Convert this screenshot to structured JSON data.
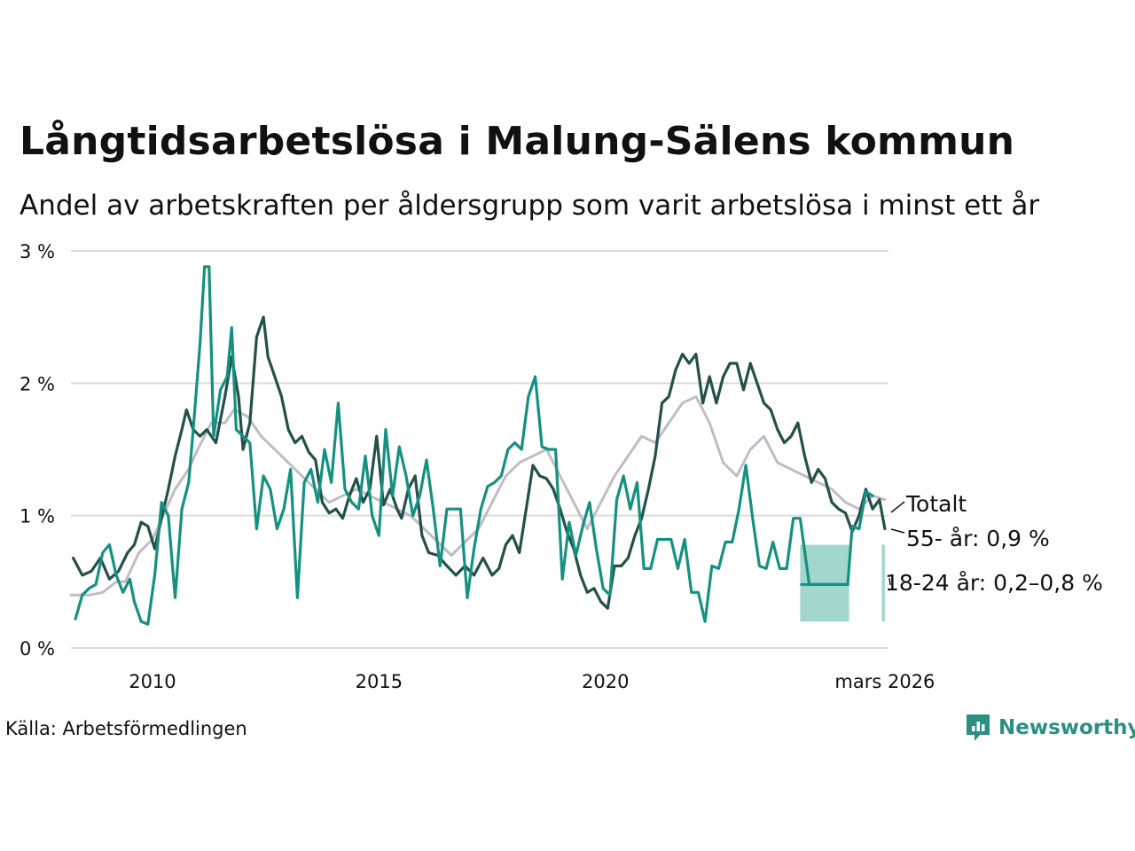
{
  "title": "Långtidsarbetslösa i Malung-Sälens kommun",
  "subtitle": "Andel av arbetskraften per åldersgrupp som varit arbetslösa i minst ett år",
  "source": "Källa: Arbetsförmedlingen",
  "brand": "Newsworthy",
  "colors": {
    "total": "#c0bcc8",
    "age55": "#24504a",
    "age18_24": "#14917f",
    "band": "#a3d6cd",
    "grid": "#dddddd",
    "brand": "#2b8f83"
  },
  "chart_data": {
    "type": "line",
    "x_unit": "decimal year",
    "xlim": [
      2008.2,
      2026.25
    ],
    "ylim": [
      0,
      3
    ],
    "yticks": [
      0,
      1,
      2,
      3
    ],
    "ytick_labels": [
      "0 %",
      "1 %",
      "2 %",
      "3 %"
    ],
    "xticks": [
      2010,
      2015,
      2020,
      2026.17
    ],
    "xtick_labels": [
      "2010",
      "2015",
      "2020",
      "mars 2026"
    ],
    "legend_placement": "end-of-line labels, right",
    "series": [
      {
        "name": "Totalt",
        "label": "Totalt",
        "color": "#c0bcc8",
        "points": [
          [
            2008.2,
            0.4
          ],
          [
            2008.6,
            0.4
          ],
          [
            2008.9,
            0.42
          ],
          [
            2009.2,
            0.5
          ],
          [
            2009.4,
            0.5
          ],
          [
            2009.7,
            0.72
          ],
          [
            2010.0,
            0.82
          ],
          [
            2010.3,
            1.05
          ],
          [
            2010.5,
            1.2
          ],
          [
            2010.8,
            1.35
          ],
          [
            2011.0,
            1.5
          ],
          [
            2011.3,
            1.7
          ],
          [
            2011.6,
            1.7
          ],
          [
            2011.8,
            1.8
          ],
          [
            2012.1,
            1.75
          ],
          [
            2012.4,
            1.6
          ],
          [
            2012.7,
            1.5
          ],
          [
            2013.0,
            1.4
          ],
          [
            2013.3,
            1.3
          ],
          [
            2013.6,
            1.2
          ],
          [
            2013.9,
            1.1
          ],
          [
            2014.2,
            1.15
          ],
          [
            2014.5,
            1.2
          ],
          [
            2014.8,
            1.15
          ],
          [
            2015.1,
            1.1
          ],
          [
            2015.4,
            1.05
          ],
          [
            2015.7,
            1.0
          ],
          [
            2016.0,
            0.9
          ],
          [
            2016.3,
            0.8
          ],
          [
            2016.6,
            0.7
          ],
          [
            2016.9,
            0.8
          ],
          [
            2017.2,
            0.9
          ],
          [
            2017.5,
            1.1
          ],
          [
            2017.8,
            1.3
          ],
          [
            2018.1,
            1.4
          ],
          [
            2018.4,
            1.45
          ],
          [
            2018.7,
            1.5
          ],
          [
            2019.0,
            1.3
          ],
          [
            2019.3,
            1.1
          ],
          [
            2019.6,
            0.9
          ],
          [
            2019.9,
            1.1
          ],
          [
            2020.2,
            1.3
          ],
          [
            2020.5,
            1.45
          ],
          [
            2020.8,
            1.6
          ],
          [
            2021.1,
            1.55
          ],
          [
            2021.4,
            1.7
          ],
          [
            2021.7,
            1.85
          ],
          [
            2022.0,
            1.9
          ],
          [
            2022.3,
            1.7
          ],
          [
            2022.6,
            1.4
          ],
          [
            2022.9,
            1.3
          ],
          [
            2023.2,
            1.5
          ],
          [
            2023.5,
            1.6
          ],
          [
            2023.8,
            1.4
          ],
          [
            2024.1,
            1.35
          ],
          [
            2024.4,
            1.3
          ],
          [
            2024.7,
            1.25
          ],
          [
            2025.0,
            1.2
          ],
          [
            2025.3,
            1.1
          ],
          [
            2025.6,
            1.05
          ],
          [
            2025.9,
            1.15
          ],
          [
            2026.17,
            1.12
          ]
        ]
      },
      {
        "name": "55- år",
        "label": "55- år: 0,9 %",
        "color": "#24504a",
        "points": [
          [
            2008.25,
            0.68
          ],
          [
            2008.45,
            0.55
          ],
          [
            2008.65,
            0.58
          ],
          [
            2008.85,
            0.68
          ],
          [
            2009.05,
            0.52
          ],
          [
            2009.25,
            0.58
          ],
          [
            2009.45,
            0.72
          ],
          [
            2009.6,
            0.78
          ],
          [
            2009.75,
            0.95
          ],
          [
            2009.9,
            0.92
          ],
          [
            2010.05,
            0.75
          ],
          [
            2010.2,
            0.98
          ],
          [
            2010.35,
            1.2
          ],
          [
            2010.5,
            1.45
          ],
          [
            2010.65,
            1.65
          ],
          [
            2010.75,
            1.8
          ],
          [
            2010.9,
            1.65
          ],
          [
            2011.05,
            1.6
          ],
          [
            2011.2,
            1.65
          ],
          [
            2011.4,
            1.55
          ],
          [
            2011.6,
            1.9
          ],
          [
            2011.75,
            2.2
          ],
          [
            2011.9,
            1.9
          ],
          [
            2012.0,
            1.5
          ],
          [
            2012.15,
            1.7
          ],
          [
            2012.3,
            2.35
          ],
          [
            2012.45,
            2.5
          ],
          [
            2012.55,
            2.2
          ],
          [
            2012.7,
            2.05
          ],
          [
            2012.85,
            1.9
          ],
          [
            2013.0,
            1.65
          ],
          [
            2013.15,
            1.55
          ],
          [
            2013.3,
            1.6
          ],
          [
            2013.45,
            1.48
          ],
          [
            2013.6,
            1.42
          ],
          [
            2013.75,
            1.1
          ],
          [
            2013.9,
            1.02
          ],
          [
            2014.05,
            1.05
          ],
          [
            2014.2,
            0.98
          ],
          [
            2014.35,
            1.15
          ],
          [
            2014.5,
            1.28
          ],
          [
            2014.65,
            1.1
          ],
          [
            2014.8,
            1.2
          ],
          [
            2014.95,
            1.6
          ],
          [
            2015.1,
            1.08
          ],
          [
            2015.25,
            1.2
          ],
          [
            2015.4,
            1.05
          ],
          [
            2015.5,
            0.98
          ],
          [
            2015.65,
            1.2
          ],
          [
            2015.8,
            1.3
          ],
          [
            2015.95,
            0.85
          ],
          [
            2016.1,
            0.72
          ],
          [
            2016.3,
            0.7
          ],
          [
            2016.5,
            0.62
          ],
          [
            2016.7,
            0.55
          ],
          [
            2016.9,
            0.62
          ],
          [
            2017.1,
            0.55
          ],
          [
            2017.3,
            0.68
          ],
          [
            2017.5,
            0.55
          ],
          [
            2017.65,
            0.6
          ],
          [
            2017.8,
            0.78
          ],
          [
            2017.95,
            0.85
          ],
          [
            2018.1,
            0.72
          ],
          [
            2018.25,
            1.05
          ],
          [
            2018.4,
            1.38
          ],
          [
            2018.55,
            1.3
          ],
          [
            2018.7,
            1.28
          ],
          [
            2018.85,
            1.2
          ],
          [
            2019.0,
            1.05
          ],
          [
            2019.15,
            0.88
          ],
          [
            2019.3,
            0.75
          ],
          [
            2019.45,
            0.55
          ],
          [
            2019.6,
            0.42
          ],
          [
            2019.75,
            0.45
          ],
          [
            2019.9,
            0.35
          ],
          [
            2020.05,
            0.3
          ],
          [
            2020.2,
            0.62
          ],
          [
            2020.35,
            0.62
          ],
          [
            2020.5,
            0.68
          ],
          [
            2020.65,
            0.85
          ],
          [
            2020.8,
            0.98
          ],
          [
            2020.95,
            1.2
          ],
          [
            2021.1,
            1.45
          ],
          [
            2021.25,
            1.85
          ],
          [
            2021.4,
            1.9
          ],
          [
            2021.55,
            2.1
          ],
          [
            2021.7,
            2.22
          ],
          [
            2021.85,
            2.15
          ],
          [
            2022.0,
            2.22
          ],
          [
            2022.15,
            1.85
          ],
          [
            2022.3,
            2.05
          ],
          [
            2022.45,
            1.85
          ],
          [
            2022.6,
            2.05
          ],
          [
            2022.75,
            2.15
          ],
          [
            2022.9,
            2.15
          ],
          [
            2023.05,
            1.95
          ],
          [
            2023.2,
            2.15
          ],
          [
            2023.35,
            2.0
          ],
          [
            2023.5,
            1.85
          ],
          [
            2023.65,
            1.8
          ],
          [
            2023.8,
            1.65
          ],
          [
            2023.95,
            1.55
          ],
          [
            2024.1,
            1.6
          ],
          [
            2024.25,
            1.7
          ],
          [
            2024.4,
            1.45
          ],
          [
            2024.55,
            1.25
          ],
          [
            2024.7,
            1.35
          ],
          [
            2024.85,
            1.28
          ],
          [
            2025.0,
            1.1
          ],
          [
            2025.15,
            1.05
          ],
          [
            2025.3,
            1.02
          ],
          [
            2025.45,
            0.88
          ],
          [
            2025.6,
            1.0
          ],
          [
            2025.75,
            1.2
          ],
          [
            2025.9,
            1.05
          ],
          [
            2026.05,
            1.12
          ],
          [
            2026.17,
            0.9
          ]
        ]
      },
      {
        "name": "18-24 år",
        "label": "18-24 år: 0,2–0,8 %",
        "color": "#14917f",
        "points": [
          [
            2008.3,
            0.22
          ],
          [
            2008.45,
            0.4
          ],
          [
            2008.6,
            0.45
          ],
          [
            2008.75,
            0.48
          ],
          [
            2008.9,
            0.72
          ],
          [
            2009.05,
            0.78
          ],
          [
            2009.2,
            0.55
          ],
          [
            2009.35,
            0.42
          ],
          [
            2009.5,
            0.52
          ],
          [
            2009.6,
            0.35
          ],
          [
            2009.75,
            0.2
          ],
          [
            2009.9,
            0.18
          ],
          [
            2010.05,
            0.55
          ],
          [
            2010.2,
            1.1
          ],
          [
            2010.35,
            1.0
          ],
          [
            2010.5,
            0.38
          ],
          [
            2010.65,
            1.05
          ],
          [
            2010.8,
            1.25
          ],
          [
            2010.9,
            1.65
          ],
          [
            2011.05,
            2.3
          ],
          [
            2011.15,
            2.88
          ],
          [
            2011.25,
            2.88
          ],
          [
            2011.35,
            1.6
          ],
          [
            2011.5,
            1.95
          ],
          [
            2011.65,
            2.05
          ],
          [
            2011.75,
            2.42
          ],
          [
            2011.85,
            1.65
          ],
          [
            2012.0,
            1.6
          ],
          [
            2012.15,
            1.55
          ],
          [
            2012.3,
            0.9
          ],
          [
            2012.45,
            1.3
          ],
          [
            2012.6,
            1.2
          ],
          [
            2012.75,
            0.9
          ],
          [
            2012.9,
            1.05
          ],
          [
            2013.05,
            1.35
          ],
          [
            2013.2,
            0.38
          ],
          [
            2013.35,
            1.25
          ],
          [
            2013.5,
            1.35
          ],
          [
            2013.65,
            1.1
          ],
          [
            2013.8,
            1.5
          ],
          [
            2013.95,
            1.25
          ],
          [
            2014.1,
            1.85
          ],
          [
            2014.25,
            1.2
          ],
          [
            2014.4,
            1.1
          ],
          [
            2014.55,
            1.05
          ],
          [
            2014.7,
            1.45
          ],
          [
            2014.85,
            1.0
          ],
          [
            2015.0,
            0.85
          ],
          [
            2015.15,
            1.65
          ],
          [
            2015.3,
            1.15
          ],
          [
            2015.45,
            1.52
          ],
          [
            2015.6,
            1.3
          ],
          [
            2015.75,
            1.0
          ],
          [
            2015.9,
            1.15
          ],
          [
            2016.05,
            1.42
          ],
          [
            2016.2,
            1.05
          ],
          [
            2016.35,
            0.62
          ],
          [
            2016.5,
            1.05
          ],
          [
            2016.65,
            1.05
          ],
          [
            2016.8,
            1.05
          ],
          [
            2016.95,
            0.38
          ],
          [
            2017.1,
            0.75
          ],
          [
            2017.25,
            1.05
          ],
          [
            2017.4,
            1.22
          ],
          [
            2017.55,
            1.25
          ],
          [
            2017.7,
            1.3
          ],
          [
            2017.85,
            1.5
          ],
          [
            2018.0,
            1.55
          ],
          [
            2018.15,
            1.5
          ],
          [
            2018.3,
            1.9
          ],
          [
            2018.45,
            2.05
          ],
          [
            2018.6,
            1.52
          ],
          [
            2018.75,
            1.5
          ],
          [
            2018.9,
            1.5
          ],
          [
            2019.05,
            0.52
          ],
          [
            2019.2,
            0.95
          ],
          [
            2019.35,
            0.7
          ],
          [
            2019.5,
            0.92
          ],
          [
            2019.65,
            1.1
          ],
          [
            2019.8,
            0.75
          ],
          [
            2019.95,
            0.45
          ],
          [
            2020.1,
            0.4
          ],
          [
            2020.25,
            1.12
          ],
          [
            2020.4,
            1.3
          ],
          [
            2020.55,
            1.05
          ],
          [
            2020.7,
            1.25
          ],
          [
            2020.85,
            0.6
          ],
          [
            2021.0,
            0.6
          ],
          [
            2021.15,
            0.82
          ],
          [
            2021.3,
            0.82
          ],
          [
            2021.45,
            0.82
          ],
          [
            2021.6,
            0.6
          ],
          [
            2021.75,
            0.82
          ],
          [
            2021.9,
            0.42
          ],
          [
            2022.05,
            0.42
          ],
          [
            2022.2,
            0.2
          ],
          [
            2022.35,
            0.62
          ],
          [
            2022.5,
            0.6
          ],
          [
            2022.65,
            0.8
          ],
          [
            2022.8,
            0.8
          ],
          [
            2022.95,
            1.05
          ],
          [
            2023.1,
            1.38
          ],
          [
            2023.25,
            0.98
          ],
          [
            2023.4,
            0.62
          ],
          [
            2023.55,
            0.6
          ],
          [
            2023.7,
            0.8
          ],
          [
            2023.85,
            0.6
          ],
          [
            2024.0,
            0.6
          ],
          [
            2024.15,
            0.98
          ],
          [
            2024.3,
            0.98
          ],
          [
            2024.5,
            0.48
          ],
          [
            2025.35,
            0.48
          ],
          [
            2025.45,
            0.92
          ],
          [
            2025.6,
            0.9
          ],
          [
            2025.75,
            1.18
          ],
          [
            2025.9,
            1.15
          ]
        ]
      }
    ],
    "uncertainty_band": {
      "series": "18-24 år",
      "color": "#a3d6cd",
      "segments": [
        {
          "x_start": 2024.3,
          "x_end": 2025.38,
          "lower": 0.2,
          "upper": 0.78,
          "mid": 0.48
        },
        {
          "x_start": 2026.1,
          "x_end": 2026.17,
          "lower": 0.2,
          "upper": 0.78
        }
      ]
    }
  }
}
